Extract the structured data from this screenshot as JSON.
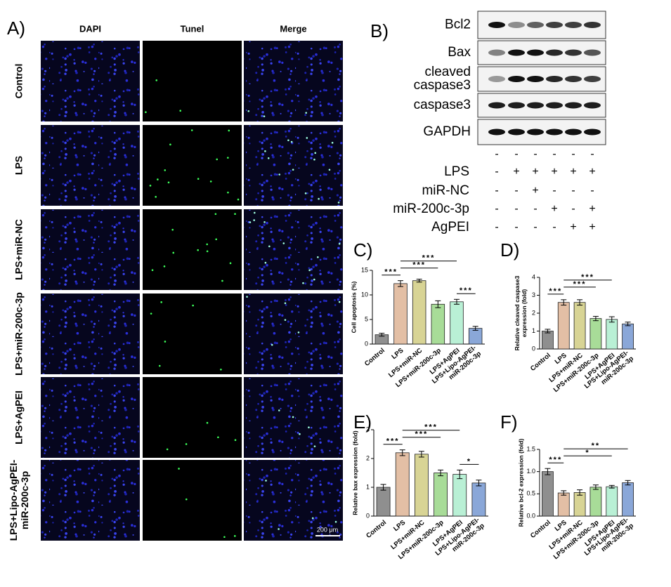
{
  "panel_a": {
    "label": "A)",
    "columns": [
      "DAPI",
      "Tunel",
      "Merge"
    ],
    "rows": [
      "Control",
      "LPS",
      "LPS+miR-NC",
      "LPS+miR-200c-3p",
      "LPS+AgPEI",
      "LPS+Lipo-AgPEI-\nmiR-200c-3p"
    ],
    "scale_bar": "200 μm"
  },
  "panel_b": {
    "label": "B)",
    "bands": [
      "Bcl2",
      "Bax",
      "cleaved\ncaspase3",
      "caspase3",
      "GAPDH"
    ],
    "treatments": [
      {
        "name": null,
        "signs": [
          "-",
          "-",
          "-",
          "-",
          "-",
          "-"
        ]
      },
      {
        "name": "LPS",
        "signs": [
          "-",
          "+",
          "+",
          "+",
          "+",
          "+"
        ]
      },
      {
        "name": "miR-NC",
        "signs": [
          "-",
          "-",
          "+",
          "-",
          "-",
          "-"
        ]
      },
      {
        "name": "miR-200c-3p",
        "signs": [
          "-",
          "-",
          "-",
          "+",
          "-",
          "+"
        ]
      },
      {
        "name": "AgPEI",
        "signs": [
          "-",
          "-",
          "-",
          "-",
          "+",
          "+"
        ]
      }
    ]
  },
  "chart_data": [
    {
      "type": "bar",
      "panel_label": "C)",
      "y_label": "Cell apoptosis (%)",
      "categories": [
        "Control",
        "LPS",
        "LPS+miR-NC",
        "LPS+miR-200c-3p",
        "LPS+AgPEI",
        "LPS+Lipo-AgPEI-\nmiR-200c-3p"
      ],
      "values": [
        1.9,
        12.3,
        12.9,
        8.1,
        8.6,
        3.2
      ],
      "errors": [
        0.3,
        0.6,
        0.3,
        0.7,
        0.5,
        0.4
      ],
      "colors": [
        "#8f8f8f",
        "#e3bfa5",
        "#d8d495",
        "#a8dc98",
        "#b9f0d5",
        "#8aa7d8"
      ],
      "ylim": [
        0,
        15
      ],
      "yticks": [
        0,
        5,
        10,
        15
      ],
      "annotations": [
        {
          "text": "***",
          "from": 0,
          "to": 1
        },
        {
          "text": "***",
          "from": 1,
          "to": 3
        },
        {
          "text": "***",
          "from": 4,
          "to": 5
        },
        {
          "text": "***",
          "from": 1,
          "to": 4
        }
      ]
    },
    {
      "type": "bar",
      "panel_label": "D)",
      "y_label": "Relative cleaved caspase3\nexpression (fold)",
      "categories": [
        "Control",
        "LPS",
        "LPS+miR-NC",
        "LPS+miR-200c-3p",
        "LPS+AgPEI",
        "LPS+Lipo-AgPEI-\nmiR-200c-3p"
      ],
      "values": [
        1.0,
        2.6,
        2.6,
        1.7,
        1.65,
        1.4
      ],
      "errors": [
        0.1,
        0.15,
        0.15,
        0.12,
        0.15,
        0.1
      ],
      "colors": [
        "#8f8f8f",
        "#e3bfa5",
        "#d8d495",
        "#a8dc98",
        "#b9f0d5",
        "#8aa7d8"
      ],
      "ylim": [
        0,
        4
      ],
      "yticks": [
        0,
        1,
        2,
        3,
        4
      ],
      "annotations": [
        {
          "text": "***",
          "from": 0,
          "to": 1
        },
        {
          "text": "***",
          "from": 1,
          "to": 3
        },
        {
          "text": "***",
          "from": 1,
          "to": 4
        }
      ]
    },
    {
      "type": "bar",
      "panel_label": "E)",
      "y_label": "Relative bax expression (fold)",
      "categories": [
        "Control",
        "LPS",
        "LPS+miR-NC",
        "LPS+miR-200c-3p",
        "LPS+AgPEI",
        "LPS+Lipo-AgPEI-\nmiR-200c-3p"
      ],
      "values": [
        1.0,
        2.2,
        2.15,
        1.5,
        1.45,
        1.15
      ],
      "errors": [
        0.1,
        0.1,
        0.1,
        0.1,
        0.15,
        0.1
      ],
      "colors": [
        "#8f8f8f",
        "#e3bfa5",
        "#d8d495",
        "#a8dc98",
        "#b9f0d5",
        "#8aa7d8"
      ],
      "ylim": [
        0,
        3
      ],
      "yticks": [
        0,
        1,
        2,
        3
      ],
      "annotations": [
        {
          "text": "***",
          "from": 0,
          "to": 1
        },
        {
          "text": "***",
          "from": 1,
          "to": 3
        },
        {
          "text": "*",
          "from": 4,
          "to": 5
        },
        {
          "text": "***",
          "from": 1,
          "to": 4
        }
      ]
    },
    {
      "type": "bar",
      "panel_label": "F)",
      "y_label": "Relative bcl-2 expression (fold)",
      "categories": [
        "Control",
        "LPS",
        "LPS+miR-NC",
        "LPS+miR-200c-3p",
        "LPS+AgPEI",
        "LPS+Lipo-AgPEI-\nmiR-200c-3p"
      ],
      "values": [
        1.0,
        0.52,
        0.53,
        0.65,
        0.66,
        0.75
      ],
      "errors": [
        0.07,
        0.05,
        0.06,
        0.05,
        0.03,
        0.05
      ],
      "colors": [
        "#8f8f8f",
        "#e3bfa5",
        "#d8d495",
        "#a8dc98",
        "#b9f0d5",
        "#8aa7d8"
      ],
      "ylim": [
        0,
        1.5
      ],
      "yticks": [
        {
          "value": 0,
          "label": "0.0"
        },
        0.5,
        {
          "value": 1,
          "label": "1.0"
        },
        {
          "value": 1.5,
          "label": "1.5"
        }
      ],
      "annotations": [
        {
          "text": "***",
          "from": 0,
          "to": 1
        },
        {
          "text": "*",
          "from": 1,
          "to": 4
        },
        {
          "text": "**",
          "from": 1,
          "to": 5
        }
      ]
    }
  ]
}
